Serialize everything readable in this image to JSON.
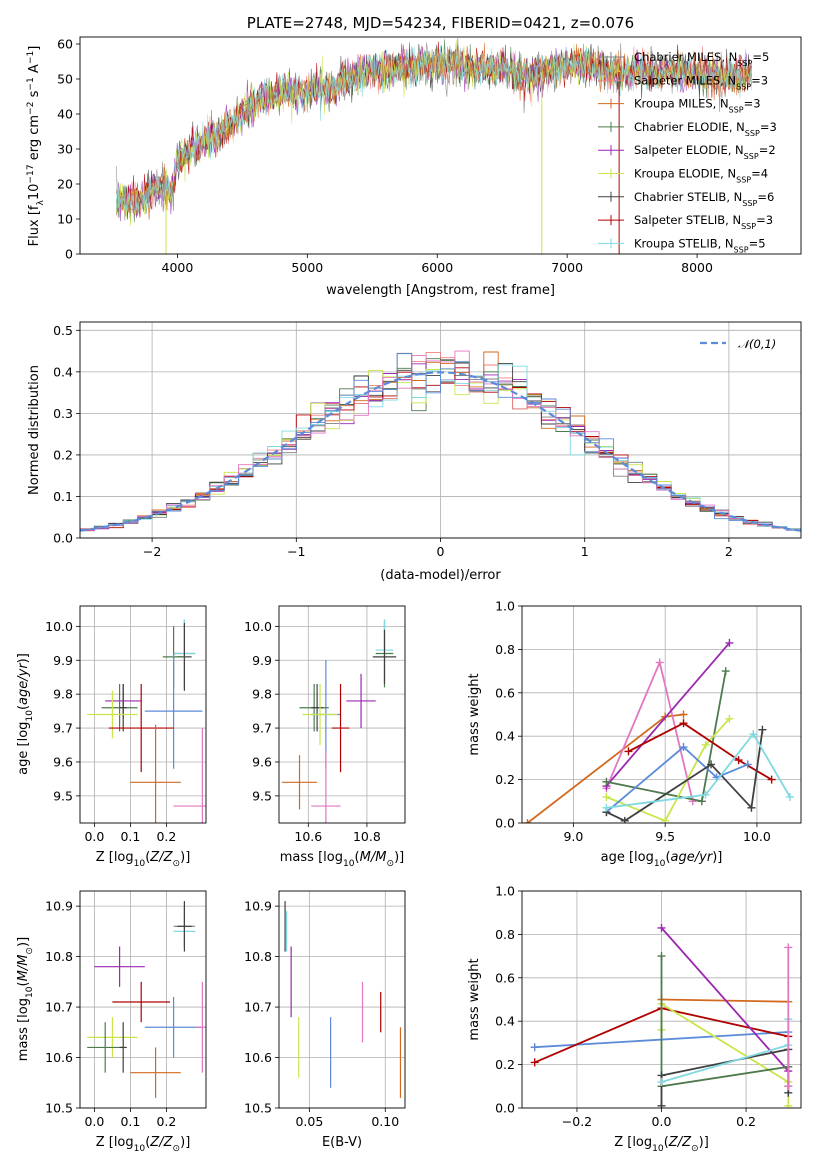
{
  "colors": {
    "chabrier_miles": "#808080",
    "salpeter_miles": "#f08080",
    "kroupa_miles": "#d2691e",
    "chabrier_elodie": "#4e7a4e",
    "salpeter_elodie": "#9c27b0",
    "kroupa_elodie": "#c8e64c",
    "chabrier_stelib": "#404040",
    "salpeter_stelib": "#b00000",
    "kroupa_stelib": "#7fd9e0",
    "pink": "#e377c2",
    "blue": "#5b8bd9",
    "normal": "#5b8bd9"
  },
  "chart_data": [
    {
      "id": "spectrum",
      "type": "line",
      "title": "PLATE=2748, MJD=54234, FIBERID=0421, z=0.076",
      "xlabel": "wavelength [Angstrom, rest frame]",
      "ylabel": "Flux [fλ10⁻¹⁷ erg cm⁻² s⁻¹ A⁻¹]",
      "xlim": [
        3250,
        8800
      ],
      "ylim": [
        0,
        62
      ],
      "xticks": [
        "4000",
        "5000",
        "6000",
        "7000",
        "8000"
      ],
      "yticks": [
        "0",
        "10",
        "20",
        "30",
        "40",
        "50",
        "60"
      ],
      "legend_position": "right",
      "legend": [
        {
          "label": "Chabrier MILES, N_SSP=5",
          "color": "#808080"
        },
        {
          "label": "Salpeter MILES, N_SSP=3",
          "color": "#f08080"
        },
        {
          "label": "Kroupa MILES, N_SSP=3",
          "color": "#d2691e"
        },
        {
          "label": "Chabrier ELODIE, N_SSP=3",
          "color": "#4e7a4e"
        },
        {
          "label": "Salpeter ELODIE, N_SSP=2",
          "color": "#9c27b0"
        },
        {
          "label": "Kroupa ELODIE, N_SSP=4",
          "color": "#c8e64c"
        },
        {
          "label": "Chabrier STELIB, N_SSP=6",
          "color": "#404040"
        },
        {
          "label": "Salpeter STELIB, N_SSP=3",
          "color": "#b00000"
        },
        {
          "label": "Kroupa STELIB, N_SSP=5",
          "color": "#7fd9e0"
        }
      ],
      "continuum": {
        "x": [
          3530,
          3700,
          3800,
          3900,
          3950,
          4000,
          4100,
          4200,
          4300,
          4400,
          4600,
          4800,
          5000,
          5100,
          5200,
          5300,
          5500,
          5700,
          5900,
          6100,
          6300,
          6500,
          6700,
          6900,
          7100,
          7400,
          7600,
          7800,
          8000,
          8200,
          8400
        ],
        "y": [
          15,
          15,
          18,
          19,
          17,
          27,
          30,
          32,
          33,
          37,
          43,
          46,
          46,
          48,
          47,
          50,
          52,
          53,
          54,
          54,
          53,
          53,
          51,
          53,
          54,
          52,
          52,
          52,
          52,
          51,
          51
        ]
      }
    },
    {
      "id": "residuals",
      "type": "histogram",
      "xlabel": "(data-model)/error",
      "ylabel": "Normed distribution",
      "xlim": [
        -2.5,
        2.5
      ],
      "ylim": [
        0,
        0.52
      ],
      "xticks": [
        "−2",
        "−1",
        "0",
        "1",
        "2"
      ],
      "yticks": [
        "0.0",
        "0.1",
        "0.2",
        "0.3",
        "0.4",
        "0.5"
      ],
      "legend": [
        {
          "label": "𝒩(0,1)",
          "style": "dashed",
          "color": "#5b8bd9"
        }
      ],
      "legend_position": "top-right",
      "bin_width": 0.1
    },
    {
      "id": "age_vs_Z",
      "type": "errorbar",
      "xlabel": "Z [log10(Z/Z⊙)]",
      "ylabel": "age  [log10(age/yr)]",
      "xlim": [
        -0.04,
        0.31
      ],
      "ylim": [
        9.42,
        10.06
      ],
      "xticks": [
        "0.0",
        "0.1",
        "0.2"
      ],
      "yticks": [
        "9.5",
        "9.6",
        "9.7",
        "9.8",
        "9.9",
        "10.0"
      ],
      "points": [
        {
          "x": 0.25,
          "y": 9.92,
          "xe": 0.03,
          "ye": 0.1,
          "color": "#808080"
        },
        {
          "x": 0.25,
          "y": 9.92,
          "xe": 0.03,
          "ye": 0.1,
          "color": "#7fd9e0"
        },
        {
          "x": 0.25,
          "y": 9.91,
          "xe": 0.02,
          "ye": 0.1,
          "color": "#404040"
        },
        {
          "x": 0.22,
          "y": 9.91,
          "xe": 0.03,
          "ye": 0.09,
          "color": "#4e7a4e"
        },
        {
          "x": 0.22,
          "y": 9.75,
          "xe": 0.08,
          "ye": 0.17,
          "color": "#5b8bd9"
        },
        {
          "x": 0.08,
          "y": 9.78,
          "xe": 0.05,
          "ye": 0.05,
          "color": "#9c27b0"
        },
        {
          "x": 0.07,
          "y": 9.76,
          "xe": 0.05,
          "ye": 0.07,
          "color": "#4e7a4e"
        },
        {
          "x": 0.08,
          "y": 9.76,
          "xe": 0.01,
          "ye": 0.07,
          "color": "#404040"
        },
        {
          "x": 0.05,
          "y": 9.74,
          "xe": 0.07,
          "ye": 0.07,
          "color": "#c8e64c"
        },
        {
          "x": 0.13,
          "y": 9.7,
          "xe": 0.09,
          "ye": 0.13,
          "color": "#b00000"
        },
        {
          "x": 0.17,
          "y": 9.54,
          "xe": 0.07,
          "ye": 0.17,
          "color": "#d2691e"
        },
        {
          "x": 0.3,
          "y": 9.47,
          "xe": 0.08,
          "ye": 0.23,
          "color": "#e377c2"
        }
      ]
    },
    {
      "id": "age_vs_mass",
      "type": "errorbar",
      "xlabel": "mass [log10(M/M⊙)]",
      "xlim": [
        10.5,
        10.93
      ],
      "ylim": [
        9.42,
        10.06
      ],
      "xticks": [
        "10.6",
        "10.8"
      ],
      "yticks": [
        "9.5",
        "9.6",
        "9.7",
        "9.8",
        "9.9",
        "10.0"
      ],
      "points": [
        {
          "x": 10.86,
          "y": 9.92,
          "xe": 0.03,
          "ye": 0.1,
          "color": "#4e7a4e"
        },
        {
          "x": 10.86,
          "y": 9.93,
          "xe": 0.03,
          "ye": 0.09,
          "color": "#7fd9e0"
        },
        {
          "x": 10.86,
          "y": 9.91,
          "xe": 0.04,
          "ye": 0.08,
          "color": "#404040"
        },
        {
          "x": 10.66,
          "y": 9.74,
          "xe": 0.05,
          "ye": 0.16,
          "color": "#5b8bd9"
        },
        {
          "x": 10.78,
          "y": 9.78,
          "xe": 0.05,
          "ye": 0.08,
          "color": "#9c27b0"
        },
        {
          "x": 10.62,
          "y": 9.76,
          "xe": 0.05,
          "ye": 0.07,
          "color": "#4e7a4e"
        },
        {
          "x": 10.63,
          "y": 9.76,
          "xe": 0.02,
          "ye": 0.07,
          "color": "#404040"
        },
        {
          "x": 10.64,
          "y": 9.74,
          "xe": 0.06,
          "ye": 0.09,
          "color": "#c8e64c"
        },
        {
          "x": 10.71,
          "y": 9.7,
          "xe": 0.03,
          "ye": 0.13,
          "color": "#b00000"
        },
        {
          "x": 10.57,
          "y": 9.54,
          "xe": 0.06,
          "ye": 0.08,
          "color": "#d2691e"
        },
        {
          "x": 10.66,
          "y": 9.47,
          "xe": 0.05,
          "ye": 0.16,
          "color": "#e377c2"
        }
      ]
    },
    {
      "id": "weight_vs_age",
      "type": "line",
      "xlabel": "age  [log10(age/yr)]",
      "ylabel": "mass weight",
      "xlim": [
        8.72,
        10.24
      ],
      "ylim": [
        0,
        1
      ],
      "xticks": [
        "9.0",
        "9.5",
        "10.0"
      ],
      "yticks": [
        "0.0",
        "0.2",
        "0.4",
        "0.6",
        "0.8",
        "1.0"
      ],
      "series": [
        {
          "color": "#d2691e",
          "x": [
            8.75,
            9.5,
            9.6
          ],
          "y": [
            0.0,
            0.49,
            0.5
          ]
        },
        {
          "color": "#e377c2",
          "x": [
            9.18,
            9.47,
            9.65
          ],
          "y": [
            0.16,
            0.74,
            0.1
          ]
        },
        {
          "color": "#9c27b0",
          "x": [
            9.18,
            9.85
          ],
          "y": [
            0.17,
            0.83
          ]
        },
        {
          "color": "#4e7a4e",
          "x": [
            9.18,
            9.7,
            9.83
          ],
          "y": [
            0.19,
            0.1,
            0.7
          ]
        },
        {
          "color": "#c8e64c",
          "x": [
            9.18,
            9.5,
            9.72,
            9.85
          ],
          "y": [
            0.12,
            0.01,
            0.36,
            0.48
          ]
        },
        {
          "color": "#b00000",
          "x": [
            9.3,
            9.6,
            9.9,
            10.08
          ],
          "y": [
            0.33,
            0.46,
            0.29,
            0.2
          ]
        },
        {
          "color": "#5b8bd9",
          "x": [
            9.18,
            9.6,
            9.78,
            9.95
          ],
          "y": [
            0.05,
            0.35,
            0.21,
            0.27
          ]
        },
        {
          "color": "#404040",
          "x": [
            9.18,
            9.28,
            9.75,
            9.97,
            10.03
          ],
          "y": [
            0.05,
            0.01,
            0.27,
            0.07,
            0.43
          ]
        },
        {
          "color": "#7fd9e0",
          "x": [
            9.18,
            9.72,
            9.98,
            10.18
          ],
          "y": [
            0.07,
            0.13,
            0.41,
            0.12
          ]
        }
      ]
    },
    {
      "id": "mass_vs_Z",
      "type": "errorbar",
      "xlabel": "Z [log10(Z/Z⊙)]",
      "ylabel": "mass [log10(M/M⊙)]",
      "xlim": [
        -0.04,
        0.31
      ],
      "ylim": [
        10.5,
        10.93
      ],
      "xticks": [
        "0.0",
        "0.1",
        "0.2"
      ],
      "yticks": [
        "10.5",
        "10.6",
        "10.7",
        "10.8",
        "10.9"
      ],
      "points": [
        {
          "x": 0.25,
          "y": 10.86,
          "xe": 0.03,
          "ye": 0.04,
          "color": "#808080"
        },
        {
          "x": 0.25,
          "y": 10.85,
          "xe": 0.03,
          "ye": 0.03,
          "color": "#7fd9e0"
        },
        {
          "x": 0.25,
          "y": 10.86,
          "xe": 0.02,
          "ye": 0.05,
          "color": "#404040"
        },
        {
          "x": 0.22,
          "y": 10.66,
          "xe": 0.08,
          "ye": 0.06,
          "color": "#5b8bd9"
        },
        {
          "x": 0.3,
          "y": 10.66,
          "xe": 0.02,
          "ye": 0.09,
          "color": "#e377c2"
        },
        {
          "x": 0.07,
          "y": 10.78,
          "xe": 0.07,
          "ye": 0.04,
          "color": "#9c27b0"
        },
        {
          "x": 0.13,
          "y": 10.71,
          "xe": 0.08,
          "ye": 0.04,
          "color": "#b00000"
        },
        {
          "x": 0.05,
          "y": 10.64,
          "xe": 0.07,
          "ye": 0.04,
          "color": "#c8e64c"
        },
        {
          "x": 0.03,
          "y": 10.62,
          "xe": 0.05,
          "ye": 0.05,
          "color": "#4e7a4e"
        },
        {
          "x": 0.08,
          "y": 10.62,
          "xe": 0.01,
          "ye": 0.05,
          "color": "#404040"
        },
        {
          "x": 0.17,
          "y": 10.57,
          "xe": 0.07,
          "ye": 0.05,
          "color": "#d2691e"
        }
      ]
    },
    {
      "id": "mass_vs_ebv",
      "type": "errorbar",
      "xlabel": "E(B-V)",
      "xlim": [
        0.03,
        0.113
      ],
      "ylim": [
        10.5,
        10.93
      ],
      "xticks": [
        "0.05",
        "0.10"
      ],
      "yticks": [
        "10.5",
        "10.6",
        "10.7",
        "10.8",
        "10.9"
      ],
      "points": [
        {
          "x": 0.034,
          "y": 10.86,
          "xe": 0,
          "ye": 0.05,
          "color": "#404040"
        },
        {
          "x": 0.035,
          "y": 10.85,
          "xe": 0,
          "ye": 0.04,
          "color": "#7fd9e0"
        },
        {
          "x": 0.038,
          "y": 10.75,
          "xe": 0,
          "ye": 0.07,
          "color": "#9c27b0"
        },
        {
          "x": 0.043,
          "y": 10.62,
          "xe": 0,
          "ye": 0.06,
          "color": "#c8e64c"
        },
        {
          "x": 0.064,
          "y": 10.61,
          "xe": 0,
          "ye": 0.07,
          "color": "#5b8bd9"
        },
        {
          "x": 0.085,
          "y": 10.69,
          "xe": 0,
          "ye": 0.06,
          "color": "#e377c2"
        },
        {
          "x": 0.097,
          "y": 10.69,
          "xe": 0,
          "ye": 0.04,
          "color": "#b00000"
        },
        {
          "x": 0.11,
          "y": 10.59,
          "xe": 0,
          "ye": 0.07,
          "color": "#d2691e"
        }
      ]
    },
    {
      "id": "weight_vs_Z",
      "type": "line",
      "xlabel": "Z [log10(Z/Z⊙)]",
      "ylabel": "mass weight",
      "xlim": [
        -0.33,
        0.33
      ],
      "ylim": [
        0,
        1
      ],
      "xticks": [
        "−0.2",
        "0.0",
        "0.2"
      ],
      "yticks": [
        "0.0",
        "0.2",
        "0.4",
        "0.6",
        "0.8",
        "1.0"
      ],
      "series": [
        {
          "color": "#5b8bd9",
          "x": [
            -0.3,
            0.3
          ],
          "y": [
            0.28,
            0.35
          ]
        },
        {
          "color": "#b00000",
          "x": [
            -0.3,
            0.0,
            0.3
          ],
          "y": [
            0.21,
            0.46,
            0.33
          ]
        },
        {
          "color": "#d2691e",
          "x": [
            0.0,
            0.3
          ],
          "y": [
            0.5,
            0.49
          ]
        },
        {
          "color": "#9c27b0",
          "x": [
            0.0,
            0.3
          ],
          "y": [
            0.83,
            0.17
          ]
        },
        {
          "color": "#c8e64c",
          "x": [
            0.0,
            0.0,
            0.3,
            0.3
          ],
          "y": [
            0.36,
            0.48,
            0.12,
            0.01
          ]
        },
        {
          "color": "#4e7a4e",
          "x": [
            0.0,
            0.0,
            0.3,
            0.3
          ],
          "y": [
            0.7,
            0.1,
            0.19,
            0.1
          ]
        },
        {
          "color": "#404040",
          "x": [
            0.0,
            0.0,
            0.3,
            0.3
          ],
          "y": [
            0.01,
            0.15,
            0.27,
            0.07
          ]
        },
        {
          "color": "#7fd9e0",
          "x": [
            0.0,
            0.3,
            0.3
          ],
          "y": [
            0.12,
            0.29,
            0.41
          ]
        },
        {
          "color": "#e377c2",
          "x": [
            0.3,
            0.3
          ],
          "y": [
            0.74,
            0.1
          ]
        }
      ]
    }
  ]
}
